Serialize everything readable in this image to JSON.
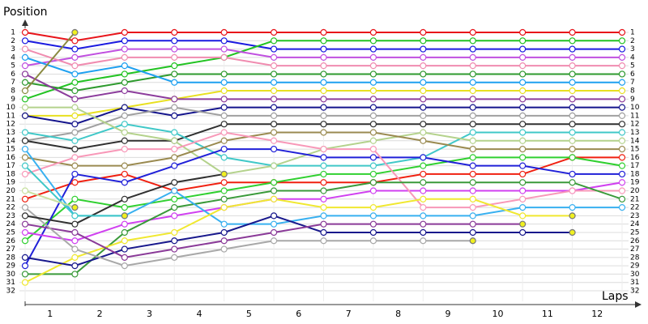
{
  "chart_data": {
    "type": "line",
    "title": "Position",
    "x_label": "Laps",
    "x": [
      0,
      1,
      2,
      3,
      4,
      5,
      6,
      7,
      8,
      9,
      10,
      11,
      12
    ],
    "xlim": [
      0,
      12
    ],
    "categories": [
      "1",
      "2",
      "3",
      "4",
      "5",
      "6",
      "7",
      "8",
      "9",
      "10",
      "11",
      "12"
    ],
    "ylim": [
      1,
      32
    ],
    "y_inverted": true,
    "yticks": [
      1,
      2,
      3,
      4,
      5,
      6,
      7,
      8,
      9,
      10,
      11,
      12,
      13,
      14,
      15,
      16,
      17,
      18,
      19,
      20,
      21,
      22,
      23,
      24,
      25,
      26,
      27,
      28,
      29,
      30,
      31,
      32
    ],
    "grid": true,
    "series": [
      {
        "color": "#e8141a",
        "values": [
          1,
          2,
          1,
          1,
          1,
          1,
          1,
          1,
          1,
          1,
          1,
          1,
          1
        ]
      },
      {
        "color": "#1a1ae0",
        "values": [
          2,
          3,
          2,
          2,
          2,
          3,
          3,
          3,
          3,
          3,
          3,
          3,
          3
        ]
      },
      {
        "color": "#22c322",
        "values": [
          9,
          7,
          6,
          5,
          4,
          2,
          2,
          2,
          2,
          2,
          2,
          2,
          2
        ]
      },
      {
        "color": "#c050e0",
        "values": [
          5,
          4,
          3,
          3,
          3,
          4,
          4,
          4,
          4,
          4,
          4,
          4,
          4
        ]
      },
      {
        "color": "#f08cb0",
        "values": [
          3,
          5,
          4,
          4,
          4,
          5,
          5,
          5,
          5,
          5,
          5,
          5,
          5
        ]
      },
      {
        "color": "#2e9a2e",
        "values": [
          7,
          8,
          7,
          6,
          6,
          6,
          6,
          6,
          6,
          6,
          6,
          6,
          6
        ]
      },
      {
        "color": "#1ea0f0",
        "values": [
          4,
          6,
          5,
          7,
          7,
          7,
          7,
          7,
          7,
          7,
          7,
          7,
          7
        ]
      },
      {
        "color": "#e8e020",
        "values": [
          11,
          11,
          10,
          9,
          8,
          8,
          8,
          8,
          8,
          8,
          8,
          8,
          8
        ]
      },
      {
        "color": "#8c3c9c",
        "values": [
          6,
          9,
          8,
          9,
          9,
          9,
          9,
          9,
          9,
          9,
          9,
          9,
          9
        ]
      },
      {
        "color": "#14148c",
        "values": [
          11,
          12,
          10,
          11,
          10,
          10,
          10,
          10,
          10,
          10,
          10,
          10,
          10
        ]
      },
      {
        "color": "#a0a0a0",
        "values": [
          14,
          13,
          11,
          10,
          11,
          11,
          11,
          11,
          11,
          11,
          11,
          11,
          11
        ]
      },
      {
        "color": "#303030",
        "values": [
          14,
          15,
          14,
          14,
          12,
          12,
          12,
          12,
          12,
          12,
          12,
          12,
          12
        ]
      },
      {
        "color": "#40c8c8",
        "values": [
          13,
          14,
          12,
          13,
          16,
          17,
          17,
          17,
          16,
          13,
          13,
          13,
          13
        ]
      },
      {
        "color": "#b4d28c",
        "values": [
          10,
          10,
          13,
          14,
          18,
          17,
          15,
          14,
          13,
          14,
          14,
          14,
          14
        ]
      },
      {
        "color": "#9a8a50",
        "values": [
          16,
          17,
          17,
          16,
          14,
          13,
          13,
          13,
          14,
          15,
          15,
          15,
          15
        ]
      },
      {
        "color": "#f02010",
        "values": [
          21,
          19,
          18,
          20,
          19,
          19,
          19,
          19,
          18,
          18,
          18,
          16,
          16
        ]
      },
      {
        "color": "#30d030",
        "values": [
          26,
          21,
          22,
          21,
          20,
          19,
          18,
          18,
          17,
          16,
          16,
          16,
          17
        ]
      },
      {
        "color": "#2020d8",
        "values": [
          29,
          18,
          19,
          17,
          15,
          15,
          16,
          16,
          16,
          17,
          17,
          18,
          18
        ]
      },
      {
        "color": "#d040f0",
        "values": [
          25,
          26,
          24,
          23,
          22,
          21,
          21,
          20,
          20,
          20,
          20,
          20,
          19
        ]
      },
      {
        "color": "#f898b8",
        "values": [
          18,
          16,
          15,
          15,
          13,
          14,
          15,
          15,
          22,
          22,
          21,
          20,
          20
        ]
      },
      {
        "color": "#3a9a3a",
        "values": [
          30,
          30,
          25,
          22,
          21,
          20,
          20,
          19,
          19,
          19,
          19,
          19,
          21
        ]
      },
      {
        "color": "#38b0f0",
        "values": [
          15,
          23,
          23,
          20,
          24,
          24,
          23,
          23,
          23,
          23,
          22,
          22,
          22
        ]
      },
      {
        "color": "#f0e830",
        "values": [
          31,
          28,
          26,
          25,
          22,
          21,
          22,
          22,
          21,
          21,
          23,
          23,
          null
        ]
      },
      {
        "color": "#18188c",
        "values": [
          28,
          29,
          27,
          26,
          25,
          23,
          25,
          25,
          25,
          25,
          25,
          25,
          null
        ]
      },
      {
        "color": "#8a3a98",
        "values": [
          24,
          25,
          28,
          27,
          26,
          25,
          24,
          24,
          24,
          24,
          24,
          null,
          null
        ]
      },
      {
        "color": "#a8a8a8",
        "values": [
          22,
          27,
          29,
          28,
          27,
          26,
          26,
          26,
          26,
          26,
          null,
          null,
          null
        ]
      },
      {
        "color": "#8a8a40",
        "values": [
          8,
          1,
          null,
          null,
          null,
          null,
          null,
          null,
          null,
          null,
          null,
          null,
          null
        ]
      },
      {
        "color": "#303030",
        "values": [
          23,
          24,
          21,
          19,
          18,
          null,
          null,
          null,
          null,
          null,
          null,
          null,
          null
        ]
      },
      {
        "color": "#40c8c8",
        "values": [
          17,
          23,
          23,
          null,
          null,
          null,
          null,
          null,
          null,
          null,
          null,
          null,
          null
        ]
      },
      {
        "color": "#c8e0a0",
        "values": [
          20,
          22,
          null,
          null,
          null,
          null,
          null,
          null,
          null,
          null,
          null,
          null,
          null
        ]
      }
    ]
  }
}
